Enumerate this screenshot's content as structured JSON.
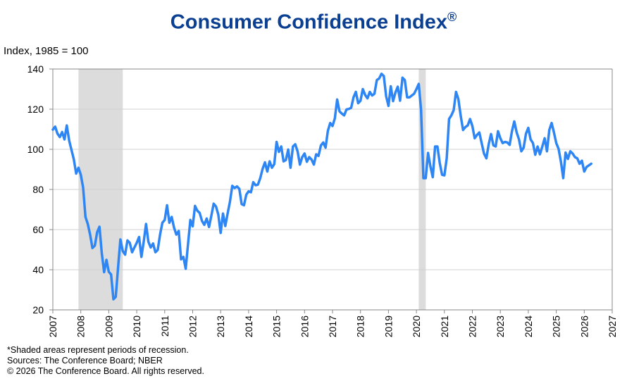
{
  "chart_data": {
    "type": "line",
    "title": "Consumer Confidence Index",
    "title_mark": "®",
    "ylabel": "Index, 1985 = 100",
    "xlabel": "",
    "ylim": [
      20,
      140
    ],
    "yticks": [
      20,
      40,
      60,
      80,
      100,
      120,
      140
    ],
    "xlim": [
      2007,
      2027
    ],
    "xticks": [
      "2007",
      "2008",
      "2009",
      "2010",
      "2011",
      "2012",
      "2013",
      "2014",
      "2015",
      "2016",
      "2017",
      "2018",
      "2019",
      "2020",
      "2021",
      "2022",
      "2023",
      "2024",
      "2025",
      "2026",
      "2027"
    ],
    "grid": "horizontal",
    "line_color": "#2e86f5",
    "recession_color": "#dcdcdc",
    "recessions": [
      {
        "start": "2007-12",
        "end": "2009-06"
      },
      {
        "start": "2020-02",
        "end": "2020-04"
      }
    ],
    "start": "2007-01",
    "frequency": "monthly",
    "values": [
      109.8,
      111.3,
      107.8,
      106.1,
      108.6,
      104.9,
      111.9,
      104.3,
      99.6,
      95.0,
      87.9,
      90.8,
      87.3,
      80.9,
      66.3,
      62.8,
      57.5,
      50.8,
      52.0,
      58.7,
      61.4,
      48.1,
      38.8,
      44.9,
      39.0,
      37.6,
      25.3,
      26.5,
      41.1,
      55.1,
      49.3,
      47.5,
      54.6,
      53.4,
      48.7,
      51.1,
      53.4,
      56.3,
      46.4,
      54.0,
      62.8,
      54.0,
      51.1,
      53.1,
      48.7,
      49.9,
      57.5,
      63.4,
      64.8,
      72.1,
      63.4,
      66.3,
      61.0,
      57.5,
      59.3,
      45.2,
      46.4,
      40.5,
      52.8,
      64.8,
      61.6,
      71.8,
      69.4,
      68.3,
      64.3,
      62.4,
      65.5,
      61.3,
      66.9,
      72.9,
      71.5,
      67.4,
      58.3,
      68.0,
      61.8,
      68.0,
      73.9,
      81.8,
      80.7,
      81.5,
      80.3,
      72.7,
      72.1,
      77.4,
      79.1,
      78.6,
      83.6,
      82.1,
      82.4,
      85.6,
      90.3,
      93.5,
      88.9,
      94.0,
      90.8,
      92.6,
      103.7,
      98.7,
      101.4,
      94.0,
      94.7,
      99.9,
      90.8,
      101.4,
      102.5,
      99.0,
      92.4,
      96.1,
      97.9,
      93.8,
      96.1,
      94.9,
      92.4,
      97.5,
      96.7,
      101.9,
      103.4,
      100.8,
      109.2,
      113.1,
      111.6,
      115.4,
      124.8,
      118.9,
      117.8,
      116.9,
      119.9,
      120.1,
      120.7,
      125.9,
      128.6,
      123.0,
      124.2,
      130.0,
      127.1,
      125.4,
      128.6,
      126.8,
      127.7,
      134.5,
      135.3,
      137.6,
      136.5,
      126.5,
      121.6,
      131.4,
      124.0,
      128.3,
      131.2,
      124.2,
      135.7,
      134.5,
      125.9,
      125.9,
      126.8,
      127.7,
      130.0,
      132.6,
      119.5,
      85.6,
      85.6,
      98.2,
      91.4,
      86.1,
      101.4,
      101.4,
      93.2,
      87.3,
      87.0,
      95.5,
      115.1,
      116.9,
      119.5,
      128.6,
      125.1,
      116.6,
      109.6,
      111.1,
      111.9,
      115.1,
      111.6,
      105.5,
      107.2,
      108.4,
      103.1,
      97.9,
      95.5,
      102.5,
      107.6,
      102.0,
      101.4,
      109.0,
      105.5,
      103.1,
      103.7,
      103.4,
      102.2,
      109.0,
      113.9,
      108.4,
      104.9,
      99.0,
      100.8,
      107.8,
      110.7,
      104.9,
      103.1,
      97.3,
      101.4,
      97.5,
      101.4,
      105.5,
      99.0,
      109.6,
      113.1,
      108.4,
      103.1,
      100.2,
      93.8,
      85.6,
      98.4,
      95.2,
      99.0,
      97.9,
      96.1,
      95.5,
      92.8,
      94.3,
      88.9,
      91.2,
      92.0,
      92.8
    ]
  },
  "notes": {
    "recession": "*Shaded areas represent periods of recession.",
    "sources": "Sources:  The Conference Board;  NBER",
    "copyright": "© 2026 The Conference Board. All rights reserved."
  }
}
